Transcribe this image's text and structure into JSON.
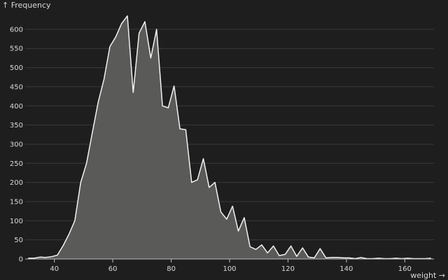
{
  "chart_data": {
    "type": "area",
    "ylabel": "↑ Frequency",
    "xlabel": "weight →",
    "xlim": [
      30,
      170
    ],
    "ylim": [
      0,
      640
    ],
    "x_ticks": [
      40,
      60,
      80,
      100,
      120,
      140,
      160
    ],
    "y_ticks": [
      0,
      50,
      100,
      150,
      200,
      250,
      300,
      350,
      400,
      450,
      500,
      550,
      600
    ],
    "grid": "horizontal",
    "colors": {
      "background": "#1e1e1e",
      "line": "#f2f2f2",
      "fill": "#5a5a58",
      "text": "#d8d8d8"
    },
    "series": [
      {
        "x": [
          31,
          33,
          35,
          37,
          39,
          41,
          43,
          45,
          47,
          49,
          51,
          53,
          55,
          57,
          59,
          61,
          63,
          65,
          67,
          69,
          71,
          73,
          75,
          77,
          79,
          81,
          83,
          85,
          87,
          89,
          91,
          93,
          95,
          97,
          99,
          101,
          103,
          105,
          107,
          109,
          111,
          113,
          115,
          117,
          119,
          121,
          123,
          125,
          127,
          129,
          131,
          133,
          135,
          137,
          139,
          141,
          143,
          145,
          147,
          149,
          151,
          153,
          155,
          157,
          159,
          161,
          163,
          165,
          167,
          169
        ],
        "values": [
          2,
          2,
          5,
          4,
          6,
          10,
          35,
          65,
          100,
          200,
          250,
          330,
          410,
          470,
          555,
          580,
          615,
          635,
          435,
          590,
          620,
          525,
          600,
          400,
          395,
          452,
          340,
          338,
          200,
          207,
          262,
          187,
          200,
          123,
          104,
          138,
          73,
          108,
          32,
          25,
          37,
          16,
          34,
          9,
          12,
          34,
          7,
          29,
          5,
          3,
          27,
          3,
          4,
          4,
          3,
          3,
          1,
          4,
          1,
          1,
          2,
          1,
          1,
          2,
          1,
          2,
          1,
          1,
          1,
          2
        ]
      }
    ]
  }
}
